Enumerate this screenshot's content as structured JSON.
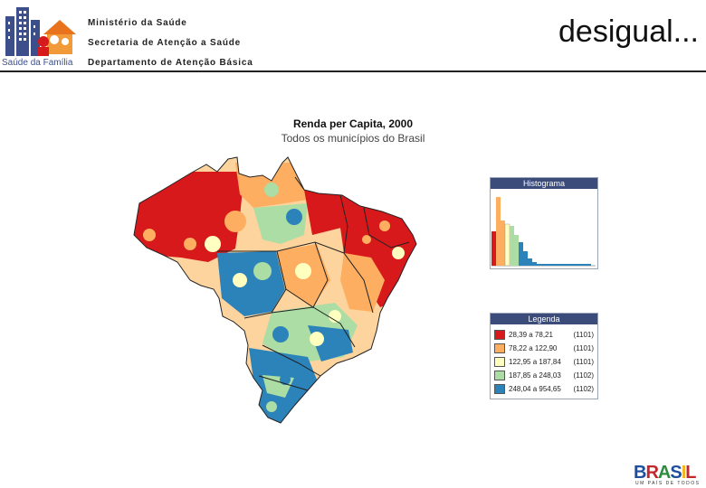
{
  "header": {
    "logo_caption": "Saúde da Família",
    "ministry": "Ministério da Saúde",
    "secretariat": "Secretaria de Atenção a Saúde",
    "department": "Departamento de Atenção Básica",
    "slide_title": "desigual..."
  },
  "map": {
    "title": "Renda per Capita, 2000",
    "subtitle": "Todos os municípios do Brasil"
  },
  "histogram": {
    "title": "Histograma",
    "colors": [
      "#d7191c",
      "#fdae61",
      "#ffffbf",
      "#abdda4",
      "#2b83ba"
    ]
  },
  "legend": {
    "title": "Legenda",
    "items": [
      {
        "range": "28,39 a 78,21",
        "count": "(1101)",
        "color": "#d7191c"
      },
      {
        "range": "78,22 a 122,90",
        "count": "(1101)",
        "color": "#fdae61"
      },
      {
        "range": "122,95 a 187,84",
        "count": "(1101)",
        "color": "#ffffbf"
      },
      {
        "range": "187,85 a 248,03",
        "count": "(1102)",
        "color": "#abdda4"
      },
      {
        "range": "248,04 a 954,65",
        "count": "(1102)",
        "color": "#2b83ba"
      }
    ]
  },
  "footer": {
    "brand_letters": [
      "B",
      "R",
      "A",
      "S",
      "I",
      "L"
    ],
    "brand_tag": "UM PAÍS DE TODOS"
  }
}
